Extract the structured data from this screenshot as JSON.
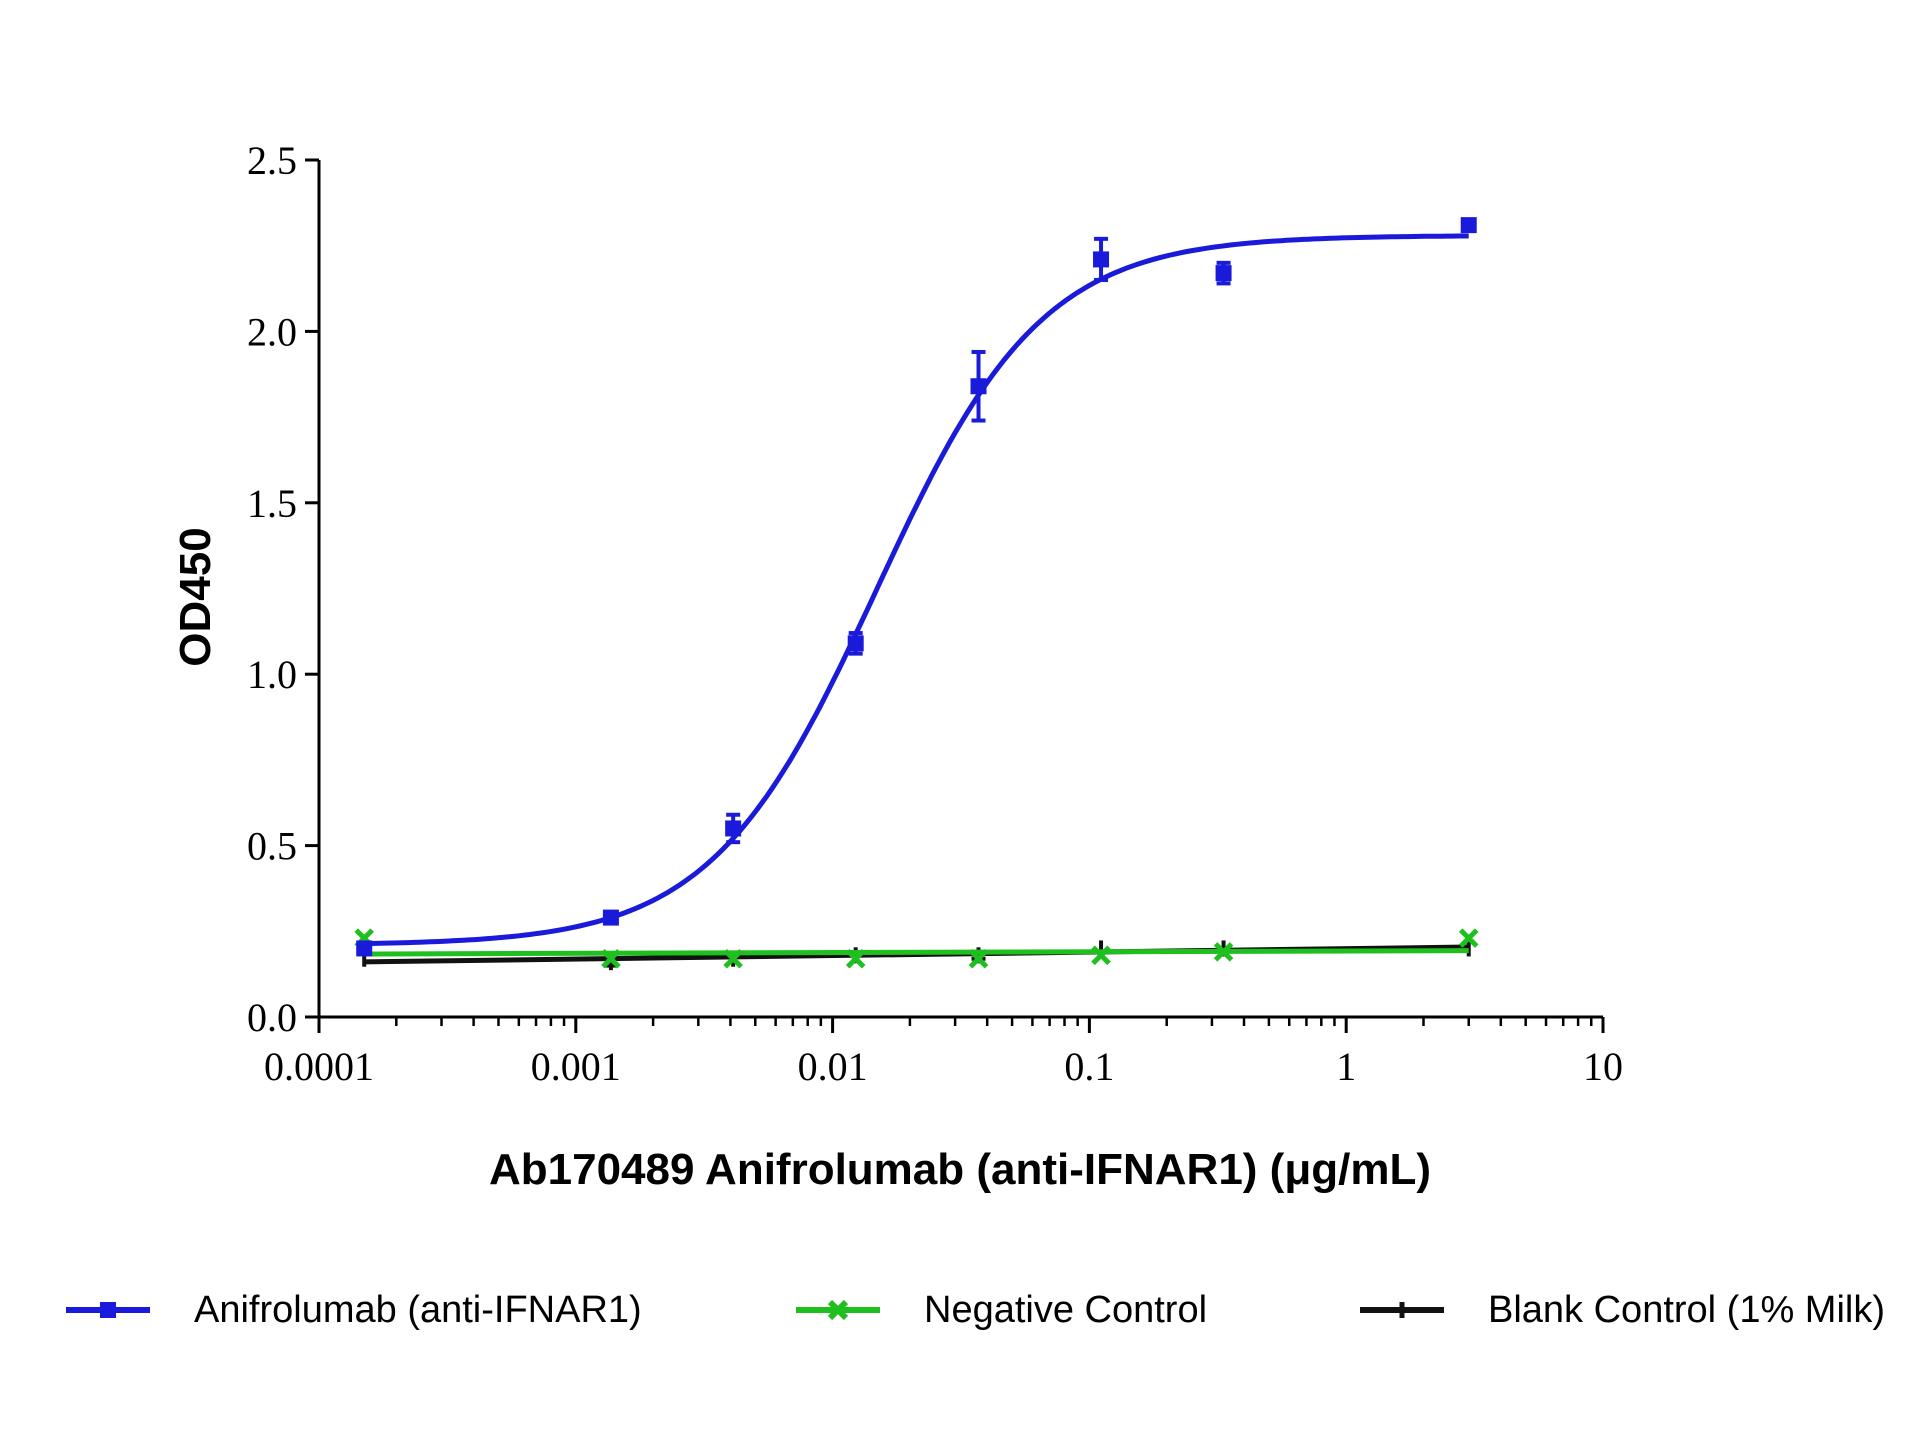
{
  "chart_data": {
    "type": "line",
    "xlabel": "Ab170489 Anifrolumab (anti-IFNAR1) (μg/mL)",
    "ylabel": "OD450",
    "x_scale": "log",
    "xlim": [
      0.0001,
      10
    ],
    "ylim": [
      0,
      2.5
    ],
    "x_ticks": [
      "0.0001",
      "0.001",
      "0.01",
      "0.1",
      "1",
      "10"
    ],
    "y_ticks": [
      "0.0",
      "0.5",
      "1.0",
      "1.5",
      "2.0",
      "2.5"
    ],
    "legend_position": "bottom",
    "series": [
      {
        "name": "Anifrolumab (anti-IFNAR1)",
        "color": "#1a1adb",
        "marker": "square",
        "x": [
          0.00015,
          0.00137,
          0.0041,
          0.0123,
          0.037,
          0.111,
          0.333,
          3.0
        ],
        "y": [
          0.2,
          0.29,
          0.55,
          1.09,
          1.84,
          2.21,
          2.17,
          2.31
        ],
        "error": [
          0.01,
          0.01,
          0.04,
          0.03,
          0.1,
          0.06,
          0.03,
          0.01
        ],
        "fit": "4PL"
      },
      {
        "name": "Negative Control",
        "color": "#1fbf1f",
        "marker": "x",
        "x": [
          0.00015,
          0.00137,
          0.0041,
          0.0123,
          0.037,
          0.111,
          0.333,
          3.0
        ],
        "y": [
          0.23,
          0.17,
          0.17,
          0.17,
          0.17,
          0.18,
          0.19,
          0.23
        ],
        "error": [
          0,
          0,
          0,
          0,
          0,
          0,
          0,
          0
        ],
        "fit": "linear"
      },
      {
        "name": "Blank Control (1% Milk)",
        "color": "#111111",
        "marker": "cross",
        "x": [
          0.00015,
          0.00137,
          0.0041,
          0.0123,
          0.037,
          0.111,
          0.333,
          3.0
        ],
        "y": [
          0.17,
          0.16,
          0.17,
          0.18,
          0.18,
          0.2,
          0.2,
          0.2
        ],
        "error": [
          0,
          0.01,
          0,
          0,
          0.01,
          0,
          0,
          0
        ],
        "fit": "linear"
      }
    ]
  }
}
